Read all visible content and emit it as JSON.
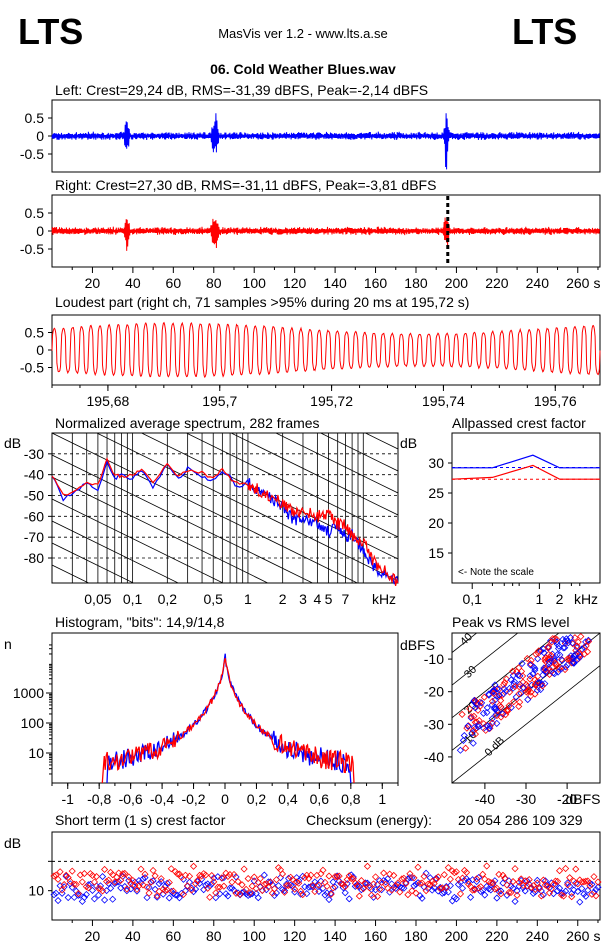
{
  "header": {
    "logo_left": "LTS",
    "logo_right": "LTS",
    "app_title": "MasVis ver 1.2 - www.lts.a.se",
    "file_name": "06. Cold Weather Blues.wav"
  },
  "colors": {
    "left_channel": "#0000ff",
    "right_channel": "#ff0000",
    "frame": "#000000"
  },
  "chart_data": [
    {
      "id": "left_waveform",
      "type": "line",
      "title": "Left: Crest=29,24 dB, RMS=-31,39 dBFS, Peak=-2,14 dBFS",
      "ylim": [
        -1,
        1
      ],
      "y_ticks": [
        "0.5",
        "0",
        "-0.5"
      ],
      "xlim": [
        0,
        271
      ],
      "transients_s": [
        37,
        80,
        81,
        195
      ],
      "series": [
        {
          "values_peak_dbfs": -2.14
        }
      ]
    },
    {
      "id": "right_waveform",
      "type": "line",
      "title": "Right: Crest=27,30 dB, RMS=-31,11 dBFS, Peak=-3,81 dBFS",
      "ylim": [
        -1,
        1
      ],
      "y_ticks": [
        "0.5",
        "0",
        "-0.5"
      ],
      "xlim": [
        0,
        271
      ],
      "x_ticks": [
        "20",
        "40",
        "60",
        "80",
        "100",
        "120",
        "140",
        "160",
        "180",
        "200",
        "220",
        "240",
        "260"
      ],
      "x_unit": "s",
      "marker_time_s": 195.72,
      "transients_s": [
        37,
        80,
        81,
        195
      ]
    },
    {
      "id": "loudest_part",
      "type": "line",
      "title": "Loudest part (right ch, 71 samples >95% during 20 ms at 195,72 s)",
      "ylim": [
        -1,
        1
      ],
      "y_ticks": [
        "0.5",
        "0",
        "-0.5"
      ],
      "xlim": [
        195.67,
        195.768
      ],
      "x_ticks": [
        "195,68",
        "195,7",
        "195,72",
        "195,74",
        "195,76"
      ],
      "x_tick_values": [
        195.68,
        195.7,
        195.72,
        195.74,
        195.76
      ],
      "cycles": 60
    },
    {
      "id": "spectrum",
      "type": "line",
      "title": "Normalized average spectrum, 282 frames",
      "ylabel": "dB",
      "y_ticks": [
        "-30",
        "-40",
        "-50",
        "-60",
        "-70",
        "-80"
      ],
      "y_tick_values": [
        -30,
        -40,
        -50,
        -60,
        -70,
        -80
      ],
      "ylim": [
        -92,
        -20
      ],
      "xlim_khz": [
        0.02,
        20
      ],
      "x_ticks": [
        "0,05",
        "0,1",
        "0,2",
        "0,5",
        "1",
        "2",
        "3",
        "4",
        "5",
        "7",
        "kHz"
      ],
      "x_tick_values": [
        0.05,
        0.1,
        0.2,
        0.5,
        1,
        2,
        3,
        4,
        5,
        7
      ],
      "series": [
        {
          "name_color": "left",
          "points": [
            [
              0.02,
              -40
            ],
            [
              0.025,
              -52
            ],
            [
              0.03,
              -49
            ],
            [
              0.04,
              -44
            ],
            [
              0.05,
              -47
            ],
            [
              0.06,
              -34
            ],
            [
              0.07,
              -42
            ],
            [
              0.08,
              -40
            ],
            [
              0.1,
              -42
            ],
            [
              0.12,
              -38
            ],
            [
              0.15,
              -46
            ],
            [
              0.2,
              -35
            ],
            [
              0.25,
              -42
            ],
            [
              0.3,
              -37
            ],
            [
              0.4,
              -41
            ],
            [
              0.5,
              -43
            ],
            [
              0.6,
              -39
            ],
            [
              0.7,
              -41
            ],
            [
              0.8,
              -46
            ],
            [
              1,
              -44
            ],
            [
              1.2,
              -48
            ],
            [
              1.5,
              -50
            ],
            [
              2,
              -55
            ],
            [
              2.5,
              -62
            ],
            [
              3,
              -60
            ],
            [
              4,
              -64
            ],
            [
              5,
              -67
            ],
            [
              6,
              -66
            ],
            [
              7,
              -70
            ],
            [
              8,
              -69
            ],
            [
              10,
              -76
            ],
            [
              12,
              -83
            ],
            [
              15,
              -88
            ],
            [
              20,
              -92
            ]
          ]
        },
        {
          "name_color": "right",
          "points": [
            [
              0.02,
              -40
            ],
            [
              0.025,
              -50
            ],
            [
              0.03,
              -48
            ],
            [
              0.04,
              -44
            ],
            [
              0.05,
              -45
            ],
            [
              0.06,
              -33
            ],
            [
              0.07,
              -40
            ],
            [
              0.08,
              -41
            ],
            [
              0.1,
              -40
            ],
            [
              0.12,
              -37
            ],
            [
              0.15,
              -44
            ],
            [
              0.2,
              -34
            ],
            [
              0.25,
              -41
            ],
            [
              0.3,
              -38
            ],
            [
              0.4,
              -39
            ],
            [
              0.5,
              -42
            ],
            [
              0.6,
              -37
            ],
            [
              0.7,
              -42
            ],
            [
              0.8,
              -44
            ],
            [
              1,
              -45
            ],
            [
              1.2,
              -47
            ],
            [
              1.5,
              -50
            ],
            [
              2,
              -54
            ],
            [
              2.5,
              -58
            ],
            [
              3,
              -57
            ],
            [
              4,
              -60
            ],
            [
              5,
              -58
            ],
            [
              6,
              -64
            ],
            [
              7,
              -63
            ],
            [
              8,
              -70
            ],
            [
              10,
              -72
            ],
            [
              12,
              -81
            ],
            [
              15,
              -86
            ],
            [
              20,
              -92
            ]
          ]
        }
      ]
    },
    {
      "id": "allpassed_crest",
      "type": "line",
      "title": "Allpassed crest factor",
      "ylabel": "dB",
      "y_ticks": [
        "30",
        "25",
        "20",
        "15"
      ],
      "y_tick_values": [
        30,
        25,
        20,
        15
      ],
      "ylim": [
        10,
        35
      ],
      "x_ticks": [
        "0,1",
        "1",
        "2",
        "kHz"
      ],
      "x_tick_values": [
        0.1,
        1,
        2
      ],
      "xlim_khz": [
        0.05,
        8
      ],
      "note": "<- Note the scale",
      "series": [
        {
          "name_color": "left",
          "points": [
            [
              0.05,
              29.2
            ],
            [
              0.2,
              29.2
            ],
            [
              0.8,
              31.3
            ],
            [
              2,
              29.2
            ],
            [
              8,
              29.2
            ]
          ],
          "reference": 29.24
        },
        {
          "name_color": "right",
          "points": [
            [
              0.05,
              27.3
            ],
            [
              0.2,
              27.6
            ],
            [
              0.8,
              29.6
            ],
            [
              2,
              27.3
            ],
            [
              8,
              27.3
            ]
          ],
          "reference": 27.3
        }
      ]
    },
    {
      "id": "histogram",
      "type": "line",
      "title": "Histogram, \"bits\": 14,9/14,8",
      "ylabel": "n",
      "y_ticks": [
        "1000",
        "100",
        "10"
      ],
      "y_tick_values": [
        1000,
        100,
        10
      ],
      "ylim_log": [
        1,
        100000
      ],
      "xlim": [
        -1.1,
        1.1
      ],
      "x_ticks": [
        "-1",
        "-0,8",
        "-0,6",
        "-0,4",
        "-0,2",
        "0",
        "0,2",
        "0,4",
        "0,6",
        "0,8",
        "1"
      ],
      "x_tick_values": [
        -1,
        -0.8,
        -0.6,
        -0.4,
        -0.2,
        0,
        0.2,
        0.4,
        0.6,
        0.8,
        1
      ],
      "series": [
        {
          "name_color": "left",
          "range": [
            -0.75,
            0.8
          ],
          "peak": 30000
        },
        {
          "name_color": "right",
          "range": [
            -0.78,
            0.82
          ],
          "peak": 30000
        }
      ]
    },
    {
      "id": "peak_vs_rms",
      "type": "scatter",
      "title": "Peak vs RMS level",
      "ylabel": "dBFS",
      "xlabel": "dBFS",
      "y_ticks": [
        "-10",
        "-20",
        "-30",
        "-40"
      ],
      "y_tick_values": [
        -10,
        -20,
        -30,
        -40
      ],
      "ylim": [
        -48,
        -2
      ],
      "x_ticks": [
        "-40",
        "-30",
        "-20"
      ],
      "x_tick_values": [
        -40,
        -30,
        -20
      ],
      "xlim": [
        -48,
        -12
      ],
      "diagonal_labels": [
        "40",
        "30",
        "20",
        "10",
        "0 dB"
      ],
      "diagonal_offsets": [
        40,
        30,
        20,
        10,
        0
      ],
      "cluster": {
        "rms_range": [
          -46,
          -14
        ],
        "peak_minus_rms": [
          7,
          20
        ]
      }
    },
    {
      "id": "short_term_crest",
      "type": "scatter",
      "title": "Short term (1 s) crest factor",
      "checksum_label": "Checksum (energy):",
      "checksum_value": "20 054 286 109 329",
      "ylabel": "dB",
      "y_ticks": [
        "10"
      ],
      "y_tick_values": [
        10
      ],
      "dashed_level": 20,
      "ylim": [
        0,
        30
      ],
      "xlim": [
        0,
        271
      ],
      "x_ticks": [
        "20",
        "40",
        "60",
        "80",
        "100",
        "120",
        "140",
        "160",
        "180",
        "200",
        "220",
        "240",
        "260"
      ],
      "x_unit": "s",
      "series": [
        {
          "name_color": "left",
          "mean": 11,
          "spread": 5
        },
        {
          "name_color": "right",
          "mean": 13,
          "spread": 6
        }
      ]
    }
  ]
}
